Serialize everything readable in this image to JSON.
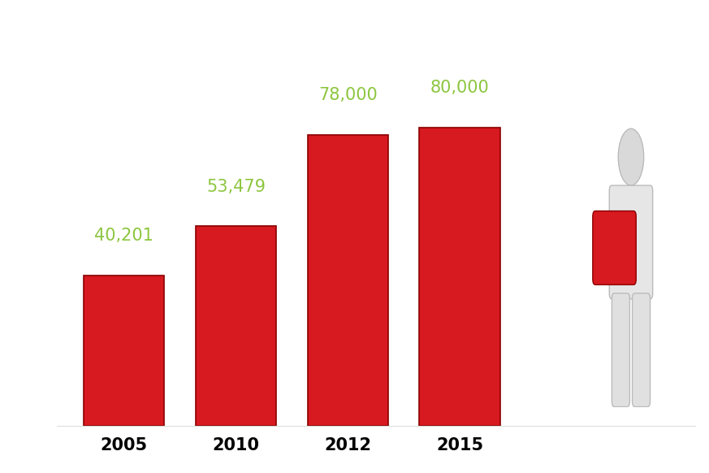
{
  "chart_data": {
    "type": "bar",
    "categories": [
      "2005",
      "2010",
      "2012",
      "2015"
    ],
    "values": [
      40201,
      53479,
      78000,
      80000
    ],
    "value_labels": [
      "40,201",
      "53,479",
      "78,000",
      "80,000"
    ],
    "color": "#d71920",
    "data_labels": true,
    "tick_labels": "x"
  }
}
